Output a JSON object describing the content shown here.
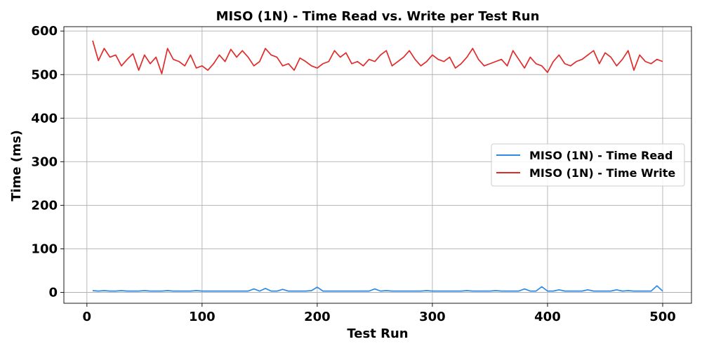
{
  "chart_data": {
    "type": "line",
    "title": "MISO (1N) - Time Read vs. Write per Test Run",
    "xlabel": "Test Run",
    "ylabel": "Time (ms)",
    "xlim": [
      -20,
      525
    ],
    "ylim": [
      -25,
      610
    ],
    "x_ticks": [
      0,
      100,
      200,
      300,
      400,
      500
    ],
    "y_ticks": [
      0,
      100,
      200,
      300,
      400,
      500,
      600
    ],
    "grid": true,
    "legend_position": "center-right",
    "series": [
      {
        "name": "MISO (1N) - Time Read",
        "color": "#2e8ae6",
        "x_start": 5,
        "x_step": 5,
        "values": [
          4,
          3,
          4,
          3,
          3,
          4,
          3,
          3,
          3,
          4,
          3,
          3,
          3,
          4,
          3,
          3,
          3,
          3,
          4,
          3,
          3,
          3,
          3,
          3,
          3,
          3,
          3,
          3,
          8,
          3,
          9,
          3,
          3,
          7,
          3,
          3,
          3,
          3,
          4,
          12,
          3,
          3,
          3,
          3,
          3,
          3,
          3,
          3,
          3,
          8,
          3,
          4,
          3,
          3,
          3,
          3,
          3,
          3,
          4,
          3,
          3,
          3,
          3,
          3,
          3,
          4,
          3,
          3,
          3,
          3,
          4,
          3,
          3,
          3,
          3,
          8,
          3,
          3,
          13,
          3,
          3,
          6,
          3,
          3,
          3,
          3,
          6,
          3,
          3,
          3,
          3,
          6,
          3,
          4,
          3,
          3,
          3,
          3,
          15,
          3
        ]
      },
      {
        "name": "MISO (1N) - Time Write",
        "color": "#e02b2b",
        "x_start": 5,
        "x_step": 5,
        "values": [
          578,
          532,
          560,
          540,
          545,
          520,
          535,
          548,
          510,
          545,
          525,
          540,
          502,
          560,
          535,
          530,
          520,
          545,
          515,
          520,
          510,
          525,
          545,
          530,
          558,
          540,
          555,
          540,
          520,
          530,
          560,
          545,
          540,
          520,
          525,
          510,
          538,
          530,
          520,
          515,
          525,
          530,
          555,
          540,
          550,
          525,
          530,
          520,
          535,
          530,
          545,
          555,
          520,
          530,
          540,
          555,
          535,
          520,
          530,
          545,
          535,
          530,
          540,
          515,
          525,
          540,
          560,
          535,
          520,
          525,
          530,
          535,
          520,
          555,
          535,
          515,
          540,
          525,
          520,
          505,
          530,
          545,
          525,
          520,
          530,
          535,
          545,
          555,
          525,
          550,
          540,
          520,
          535,
          555,
          510,
          545,
          530,
          525,
          535,
          530
        ]
      }
    ]
  }
}
